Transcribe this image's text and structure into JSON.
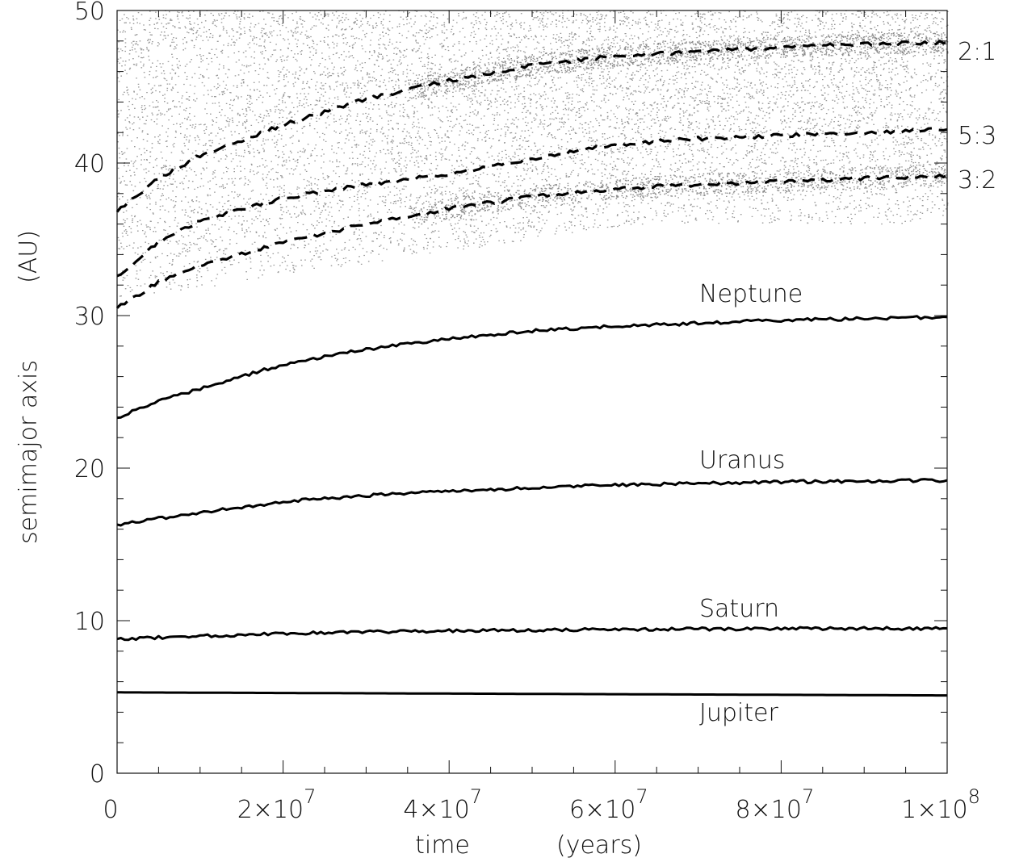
{
  "chart_data": {
    "type": "line",
    "title": "",
    "xlabel_left": "time",
    "xlabel_right": "(years)",
    "ylabel_left": "semimajor axis",
    "ylabel_right": "(AU)",
    "xlim": [
      0,
      100000000
    ],
    "ylim": [
      0,
      50
    ],
    "xticks": [
      {
        "value": 0,
        "label": "0"
      },
      {
        "value": 20000000,
        "label": "2×10",
        "exp": "7"
      },
      {
        "value": 40000000,
        "label": "4×10",
        "exp": "7"
      },
      {
        "value": 60000000,
        "label": "6×10",
        "exp": "7"
      },
      {
        "value": 80000000,
        "label": "8×10",
        "exp": "7"
      },
      {
        "value": 100000000,
        "label": "1×10",
        "exp": "8"
      }
    ],
    "yticks": [
      {
        "value": 0,
        "label": "0"
      },
      {
        "value": 10,
        "label": "10"
      },
      {
        "value": 20,
        "label": "20"
      },
      {
        "value": 30,
        "label": "30"
      },
      {
        "value": 40,
        "label": "40"
      },
      {
        "value": 50,
        "label": "50"
      }
    ],
    "series": [
      {
        "name": "Jupiter",
        "style": "solid",
        "x": [
          0,
          100000000
        ],
        "y": [
          5.3,
          5.1
        ]
      },
      {
        "name": "Saturn",
        "style": "solid",
        "x": [
          0,
          10000000,
          20000000,
          30000000,
          40000000,
          50000000,
          60000000,
          70000000,
          80000000,
          90000000,
          100000000
        ],
        "y": [
          8.8,
          9.0,
          9.15,
          9.25,
          9.35,
          9.38,
          9.42,
          9.45,
          9.47,
          9.48,
          9.5
        ]
      },
      {
        "name": "Uranus",
        "style": "solid",
        "x": [
          0,
          10000000,
          20000000,
          30000000,
          40000000,
          50000000,
          60000000,
          70000000,
          80000000,
          90000000,
          100000000
        ],
        "y": [
          16.3,
          17.1,
          17.8,
          18.2,
          18.5,
          18.7,
          18.9,
          19.0,
          19.1,
          19.15,
          19.2
        ]
      },
      {
        "name": "Neptune",
        "style": "solid",
        "x": [
          0,
          5000000,
          10000000,
          20000000,
          30000000,
          40000000,
          50000000,
          60000000,
          70000000,
          80000000,
          90000000,
          100000000
        ],
        "y": [
          23.3,
          24.4,
          25.2,
          26.8,
          27.8,
          28.5,
          29.0,
          29.3,
          29.5,
          29.7,
          29.8,
          29.9
        ]
      },
      {
        "name": "3:2",
        "style": "dashed",
        "x": [
          0,
          5000000,
          10000000,
          20000000,
          30000000,
          40000000,
          50000000,
          60000000,
          70000000,
          80000000,
          90000000,
          100000000
        ],
        "y": [
          30.5,
          32.2,
          33.3,
          34.8,
          36.0,
          37.0,
          37.8,
          38.3,
          38.6,
          38.8,
          39.0,
          39.2
        ]
      },
      {
        "name": "5:3",
        "style": "dashed",
        "x": [
          0,
          5000000,
          10000000,
          20000000,
          30000000,
          40000000,
          50000000,
          60000000,
          70000000,
          80000000,
          90000000,
          100000000
        ],
        "y": [
          32.6,
          34.8,
          36.2,
          37.7,
          38.6,
          39.3,
          40.3,
          41.2,
          41.6,
          41.8,
          42.0,
          42.2
        ]
      },
      {
        "name": "2:1",
        "style": "dashed",
        "x": [
          0,
          5000000,
          10000000,
          20000000,
          30000000,
          40000000,
          50000000,
          60000000,
          70000000,
          80000000,
          90000000,
          100000000
        ],
        "y": [
          36.8,
          39.0,
          40.5,
          42.5,
          44.2,
          45.4,
          46.4,
          47.0,
          47.3,
          47.6,
          47.8,
          47.9
        ]
      }
    ],
    "planet_labels": [
      "Neptune",
      "Uranus",
      "Saturn",
      "Jupiter"
    ],
    "resonance_labels": [
      "2:1",
      "5:3",
      "3:2"
    ],
    "particles": {
      "color": "#9a9a9a",
      "description_units": "AU",
      "inner_edge_start": 31,
      "inner_edge_end": 36,
      "outer_edge": 50
    }
  }
}
